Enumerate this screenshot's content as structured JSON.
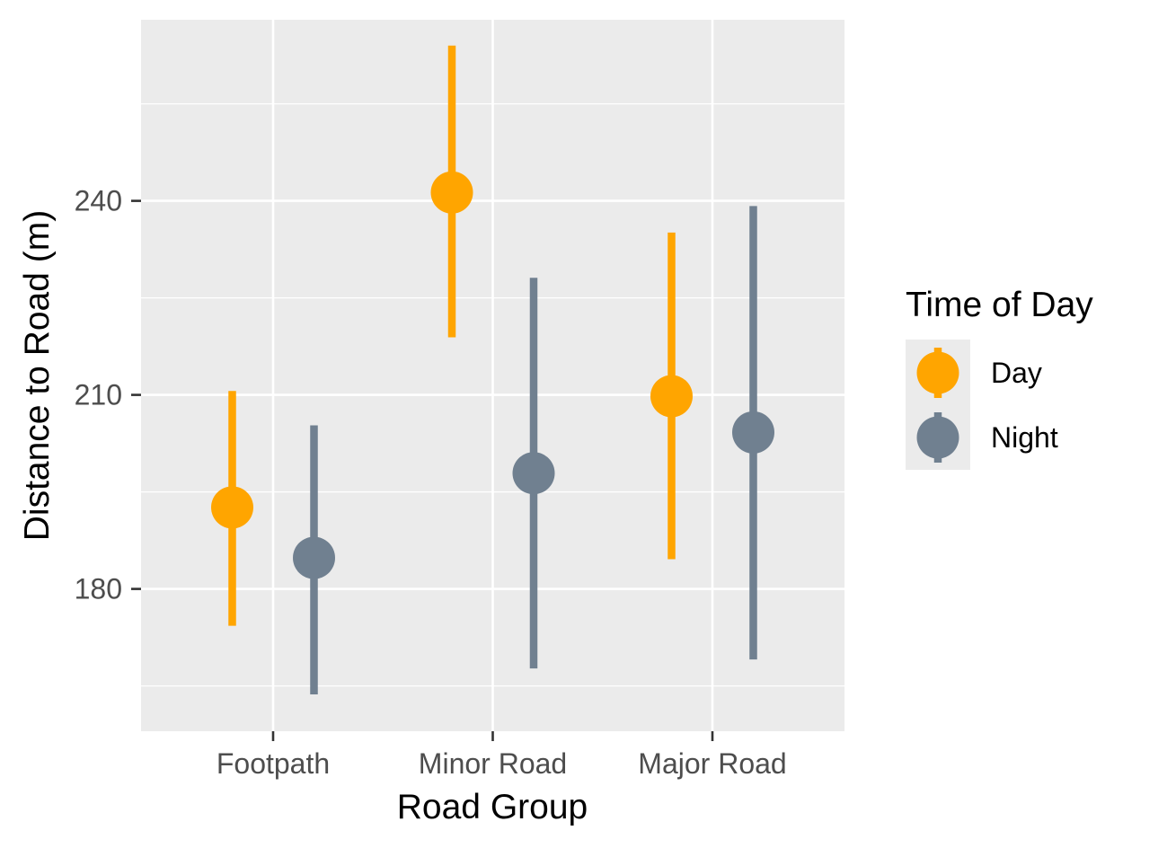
{
  "chart_data": {
    "type": "scatter",
    "xlabel": "Road Group",
    "ylabel": "Distance to Road (m)",
    "categories": [
      "Footpath",
      "Minor Road",
      "Major Road"
    ],
    "y_ticks": [
      180,
      210,
      240
    ],
    "ylim": [
      158,
      268
    ],
    "grid": true,
    "legend": {
      "title": "Time of Day",
      "position": "right"
    },
    "series": [
      {
        "name": "Day",
        "color": "#FFA500",
        "points": [
          {
            "category": "Footpath",
            "mean": 192.6,
            "lower": 174.3,
            "upper": 210.6
          },
          {
            "category": "Minor Road",
            "mean": 241.3,
            "lower": 218.9,
            "upper": 264.0
          },
          {
            "category": "Major Road",
            "mean": 209.8,
            "lower": 184.6,
            "upper": 235.1
          }
        ]
      },
      {
        "name": "Night",
        "color": "#708090",
        "points": [
          {
            "category": "Footpath",
            "mean": 184.8,
            "lower": 163.7,
            "upper": 205.3
          },
          {
            "category": "Minor Road",
            "mean": 197.9,
            "lower": 167.7,
            "upper": 228.1
          },
          {
            "category": "Major Road",
            "mean": 204.2,
            "lower": 169.1,
            "upper": 239.2
          }
        ]
      }
    ]
  }
}
